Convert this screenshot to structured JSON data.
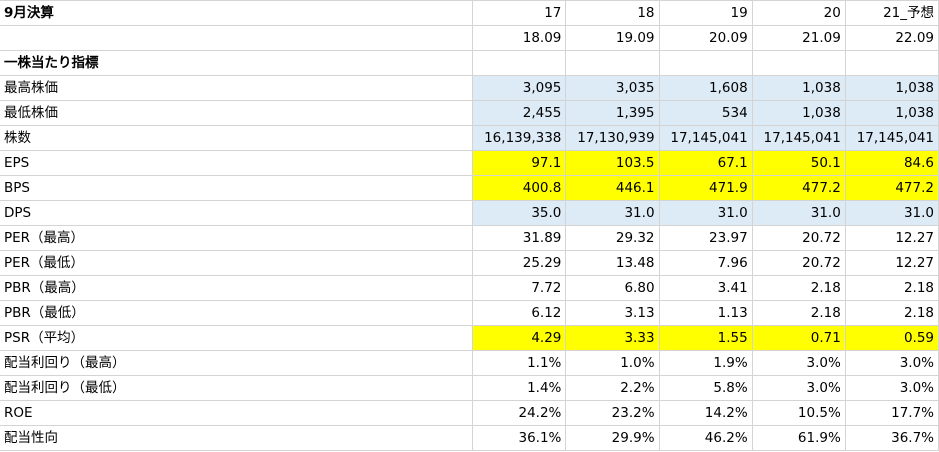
{
  "header": {
    "title": "9月決算",
    "years": [
      "17",
      "18",
      "19",
      "20",
      "21_予想"
    ],
    "periods": [
      "18.09",
      "19.09",
      "20.09",
      "21.09",
      "22.09"
    ]
  },
  "section_title": "一株当たり指標",
  "colors": {
    "blue": "#ddebf7",
    "yellow": "#ffff00"
  },
  "rows": [
    {
      "label": "最高株価",
      "values": [
        "3,095",
        "3,035",
        "1,608",
        "1,038",
        "1,038"
      ],
      "highlight": "blue"
    },
    {
      "label": "最低株価",
      "values": [
        "2,455",
        "1,395",
        "534",
        "1,038",
        "1,038"
      ],
      "highlight": "blue"
    },
    {
      "label": "株数",
      "values": [
        "16,139,338",
        "17,130,939",
        "17,145,041",
        "17,145,041",
        "17,145,041"
      ],
      "highlight": "blue"
    },
    {
      "label": "EPS",
      "values": [
        "97.1",
        "103.5",
        "67.1",
        "50.1",
        "84.6"
      ],
      "highlight": "yellow"
    },
    {
      "label": "BPS",
      "values": [
        "400.8",
        "446.1",
        "471.9",
        "477.2",
        "477.2"
      ],
      "highlight": "yellow"
    },
    {
      "label": "DPS",
      "values": [
        "35.0",
        "31.0",
        "31.0",
        "31.0",
        "31.0"
      ],
      "highlight": "blue"
    },
    {
      "label": "PER（最高）",
      "values": [
        "31.89",
        "29.32",
        "23.97",
        "20.72",
        "12.27"
      ],
      "highlight": ""
    },
    {
      "label": "PER（最低）",
      "values": [
        "25.29",
        "13.48",
        "7.96",
        "20.72",
        "12.27"
      ],
      "highlight": ""
    },
    {
      "label": "PBR（最高）",
      "values": [
        "7.72",
        "6.80",
        "3.41",
        "2.18",
        "2.18"
      ],
      "highlight": ""
    },
    {
      "label": "PBR（最低）",
      "values": [
        "6.12",
        "3.13",
        "1.13",
        "2.18",
        "2.18"
      ],
      "highlight": ""
    },
    {
      "label": "PSR（平均）",
      "values": [
        "4.29",
        "3.33",
        "1.55",
        "0.71",
        "0.59"
      ],
      "highlight": "yellow"
    },
    {
      "label": "配当利回り（最高）",
      "values": [
        "1.1%",
        "1.0%",
        "1.9%",
        "3.0%",
        "3.0%"
      ],
      "highlight": ""
    },
    {
      "label": "配当利回り（最低）",
      "values": [
        "1.4%",
        "2.2%",
        "5.8%",
        "3.0%",
        "3.0%"
      ],
      "highlight": ""
    },
    {
      "label": "ROE",
      "values": [
        "24.2%",
        "23.2%",
        "14.2%",
        "10.5%",
        "17.7%"
      ],
      "highlight": ""
    },
    {
      "label": "配当性向",
      "values": [
        "36.1%",
        "29.9%",
        "46.2%",
        "61.9%",
        "36.7%"
      ],
      "highlight": ""
    }
  ]
}
